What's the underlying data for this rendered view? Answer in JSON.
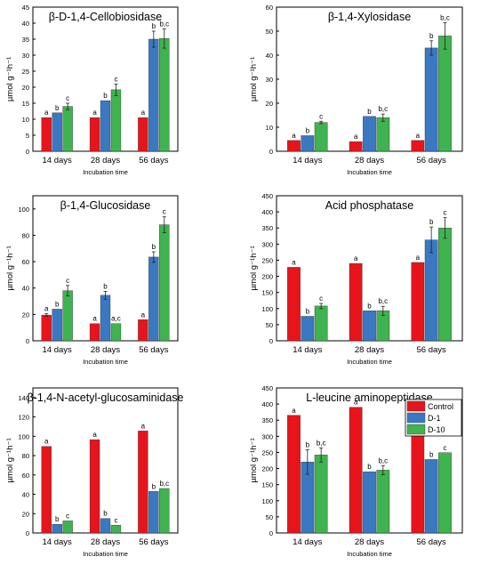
{
  "colors": {
    "control": "#e8141b",
    "d1": "#3a78c2",
    "d10": "#3fb34f",
    "axis": "#000000",
    "error": "#222222"
  },
  "legend": {
    "placement": "top-right of bottom-right panel",
    "entries": [
      "Control",
      "D-1",
      "D-10"
    ]
  },
  "chart_data": [
    {
      "type": "bar",
      "title": "β-D-1,4-Cellobiosidase",
      "ylabel": "µmol g⁻¹h⁻¹",
      "xlabel": "Incubation time",
      "categories": [
        "14 days",
        "28 days",
        "56 days"
      ],
      "ylim": [
        0,
        45
      ],
      "yticks": [
        0,
        5,
        10,
        15,
        20,
        25,
        30,
        35,
        40,
        45
      ],
      "series": [
        {
          "name": "Control",
          "values": [
            10.5,
            10.5,
            10.5
          ],
          "errors": [
            0,
            0,
            0
          ],
          "letters": [
            "a",
            "a",
            "a"
          ]
        },
        {
          "name": "D-1",
          "values": [
            12,
            15.8,
            35
          ],
          "errors": [
            0,
            0,
            2.5
          ],
          "letters": [
            "b",
            "b",
            "b"
          ]
        },
        {
          "name": "D-10",
          "values": [
            14,
            19.2,
            35.2
          ],
          "errors": [
            1,
            1.8,
            3
          ],
          "letters": [
            "c",
            "c",
            "b,c"
          ]
        }
      ]
    },
    {
      "type": "bar",
      "title": "β-1,4-Xylosidase",
      "ylabel": "µmol g⁻¹h⁻¹",
      "xlabel": "Incubation time",
      "categories": [
        "14 days",
        "28 days",
        "56 days"
      ],
      "ylim": [
        0,
        60
      ],
      "yticks": [
        0,
        10,
        20,
        30,
        40,
        50,
        60
      ],
      "series": [
        {
          "name": "Control",
          "values": [
            4.5,
            4,
            4.5
          ],
          "errors": [
            0,
            0,
            0
          ],
          "letters": [
            "a",
            "a",
            "a"
          ]
        },
        {
          "name": "D-1",
          "values": [
            6.5,
            14.5,
            43
          ],
          "errors": [
            0,
            0,
            3
          ],
          "letters": [
            "b",
            "b",
            "b"
          ]
        },
        {
          "name": "D-10",
          "values": [
            12,
            14,
            48
          ],
          "errors": [
            0.5,
            1.5,
            5.5
          ],
          "letters": [
            "c",
            "b,c",
            "b,c"
          ]
        }
      ]
    },
    {
      "type": "bar",
      "title": "β-1,4-Glucosidase",
      "ylabel": "µmol g⁻¹h⁻¹",
      "xlabel": "Incubation time",
      "categories": [
        "14 days",
        "28 days",
        "56 days"
      ],
      "ylim": [
        0,
        110
      ],
      "yticks": [
        0,
        20,
        40,
        60,
        80,
        100
      ],
      "series": [
        {
          "name": "Control",
          "values": [
            19.5,
            13,
            16
          ],
          "errors": [
            1,
            0,
            0
          ],
          "letters": [
            "a",
            "a",
            "a"
          ]
        },
        {
          "name": "D-1",
          "values": [
            24,
            34.5,
            63.5
          ],
          "errors": [
            0,
            3,
            4
          ],
          "letters": [
            "b",
            "b",
            "b"
          ]
        },
        {
          "name": "D-10",
          "values": [
            38,
            13,
            88
          ],
          "errors": [
            4,
            0,
            6
          ],
          "letters": [
            "c",
            "a,c",
            "c"
          ]
        }
      ]
    },
    {
      "type": "bar",
      "title": "Acid phosphatase",
      "ylabel": "µmol g⁻¹h⁻¹",
      "xlabel": "Incubation time",
      "categories": [
        "14 days",
        "28 days",
        "56 days"
      ],
      "ylim": [
        0,
        450
      ],
      "yticks": [
        0,
        50,
        100,
        150,
        200,
        250,
        300,
        350,
        400,
        450
      ],
      "series": [
        {
          "name": "Control",
          "values": [
            228,
            240,
            243
          ],
          "errors": [
            0,
            0,
            0
          ],
          "letters": [
            "a",
            "a",
            "a"
          ]
        },
        {
          "name": "D-1",
          "values": [
            76,
            93,
            313
          ],
          "errors": [
            0,
            0,
            40
          ],
          "letters": [
            "b",
            "b",
            "b"
          ]
        },
        {
          "name": "D-10",
          "values": [
            108,
            93,
            350
          ],
          "errors": [
            8,
            14,
            32
          ],
          "letters": [
            "c",
            "b,c",
            "c"
          ]
        }
      ]
    },
    {
      "type": "bar",
      "title": "β-1,4-N-acetyl-glucosaminidase",
      "ylabel": "µmol g⁻¹h⁻¹",
      "xlabel": "Incubation time",
      "categories": [
        "14 days",
        "28 days",
        "56 days"
      ],
      "ylim": [
        0,
        150
      ],
      "yticks": [
        0,
        20,
        40,
        60,
        80,
        100,
        120,
        140
      ],
      "series": [
        {
          "name": "Control",
          "values": [
            89.5,
            96.5,
            105.5
          ],
          "errors": [
            0,
            0,
            0
          ],
          "letters": [
            "a",
            "a",
            "a"
          ]
        },
        {
          "name": "D-1",
          "values": [
            9,
            15,
            43
          ],
          "errors": [
            0,
            0,
            0
          ],
          "letters": [
            "b",
            "b",
            "b"
          ]
        },
        {
          "name": "D-10",
          "values": [
            12.5,
            8,
            46
          ],
          "errors": [
            0,
            0,
            0
          ],
          "letters": [
            "c",
            "c",
            "b,c"
          ]
        }
      ]
    },
    {
      "type": "bar",
      "title": "L-leucine aminopeptidase",
      "ylabel": "µmol g⁻¹h⁻¹",
      "xlabel": "Incubation time",
      "categories": [
        "14 days",
        "28 days",
        "56 days"
      ],
      "ylim": [
        0,
        450
      ],
      "yticks": [
        0,
        50,
        100,
        150,
        200,
        250,
        300,
        350,
        400,
        450
      ],
      "series": [
        {
          "name": "Control",
          "values": [
            365,
            390,
            387
          ],
          "errors": [
            0,
            0,
            0
          ],
          "letters": [
            "a",
            "a",
            "a"
          ]
        },
        {
          "name": "D-1",
          "values": [
            220,
            190,
            228
          ],
          "errors": [
            38,
            0,
            0
          ],
          "letters": [
            "b",
            "b",
            "b"
          ]
        },
        {
          "name": "D-10",
          "values": [
            242,
            195,
            249
          ],
          "errors": [
            22,
            14,
            0
          ],
          "letters": [
            "b,c",
            "b,c",
            "c"
          ]
        }
      ]
    }
  ]
}
